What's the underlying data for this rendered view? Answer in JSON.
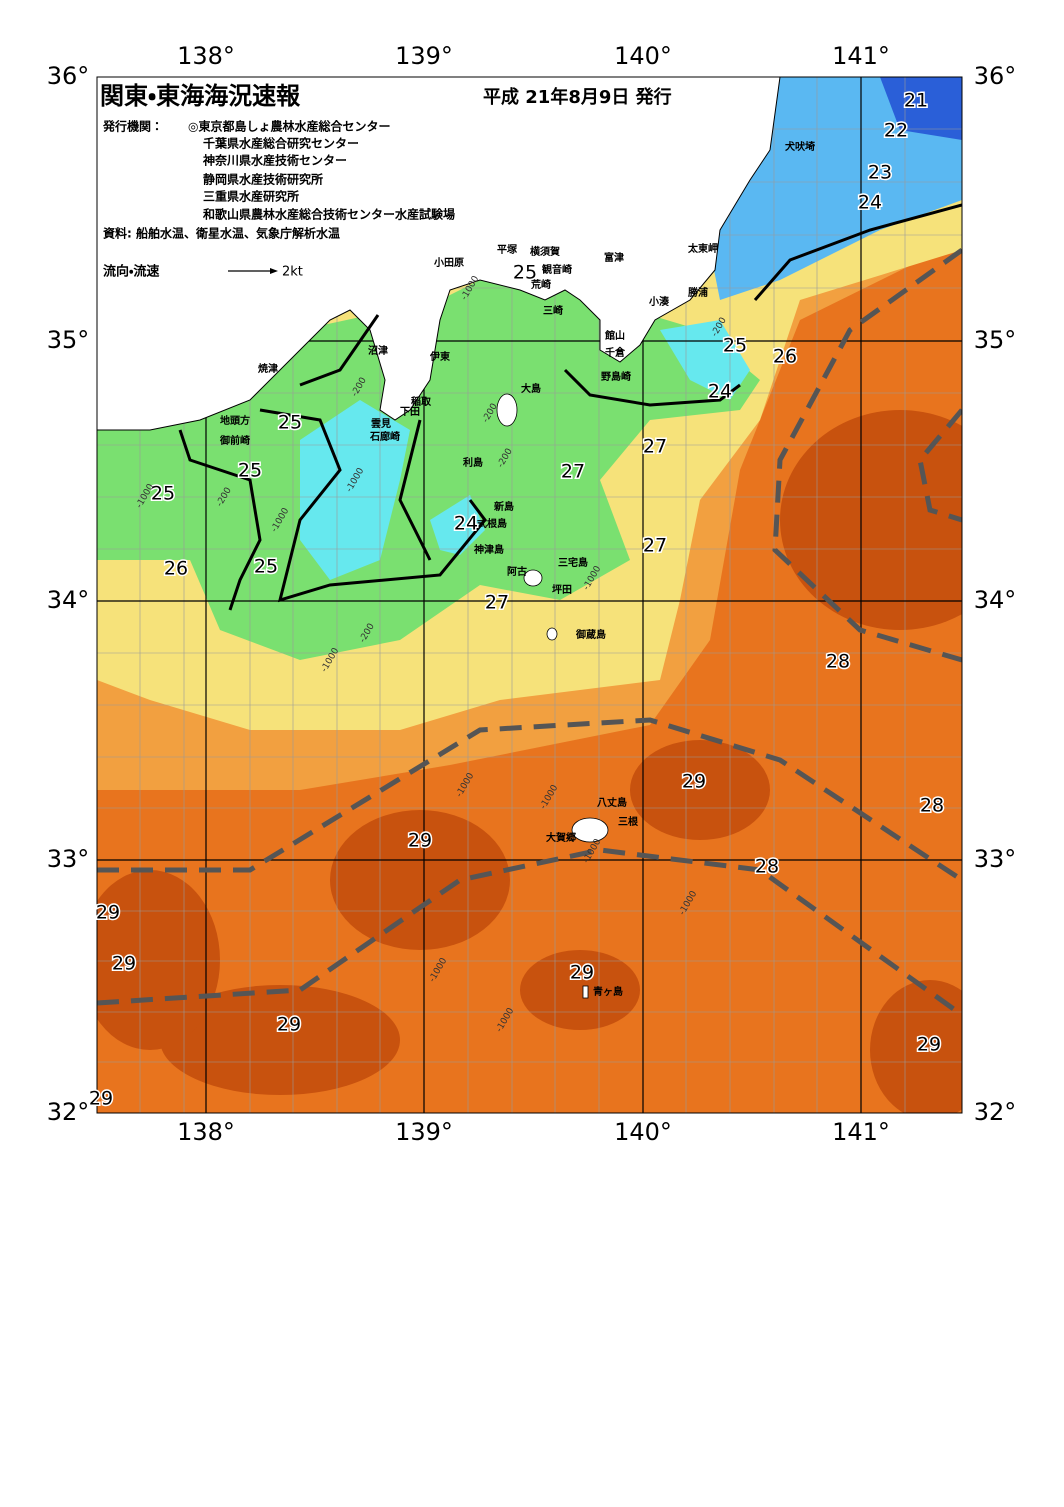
{
  "title": "関東・東海海況速報",
  "date": "平成 21年8月9日 発行",
  "issuer_label": "発行機関：",
  "issuers": [
    "◎東京都島しょ農林水産総合センター",
    "千葉県水産総合研究センター",
    "神奈川県水産技術センター",
    "静岡県水産技術研究所",
    "三重県水産研究所",
    "和歌山県農林水産総合技術センター水産試験場"
  ],
  "source": "資料: 船舶水温、衛星水温、気象庁解析水温",
  "legend": {
    "label": "流向・流速",
    "scale": "2kt"
  },
  "lon_labels": [
    "138°",
    "139°",
    "140°",
    "141°"
  ],
  "lat_labels": [
    "36°",
    "35°",
    "34°",
    "33°",
    "32°"
  ],
  "places": [
    "犬吠埼",
    "太東岬",
    "勝浦",
    "小湊",
    "館山",
    "千倉",
    "野島崎",
    "富津",
    "観音崎",
    "横須賀",
    "平塚",
    "荒崎",
    "三崎",
    "小田原",
    "沼津",
    "伊東",
    "焼津",
    "大島",
    "稲取",
    "下田",
    "雲見",
    "石廊崎",
    "地頭方",
    "御前崎",
    "利島",
    "新島",
    "式根島",
    "神津島",
    "阿古",
    "三宅島",
    "坪田",
    "御蔵島",
    "八丈島",
    "三根",
    "大賀郷",
    "青ヶ島"
  ],
  "isotherm_labels": [
    21,
    22,
    23,
    24,
    25,
    25,
    26,
    24,
    27,
    27,
    27,
    25,
    25,
    25,
    24,
    26,
    25,
    27,
    28,
    29,
    28,
    29,
    28,
    29,
    29,
    29,
    29,
    29,
    29
  ],
  "depth_labels": [
    -1000,
    -200,
    -200,
    -200,
    -200,
    -1000,
    -200,
    -1000,
    -1000,
    -1000,
    -200,
    -1000,
    -1000,
    -1000,
    -1000,
    -1000,
    -1000,
    -1000
  ]
}
